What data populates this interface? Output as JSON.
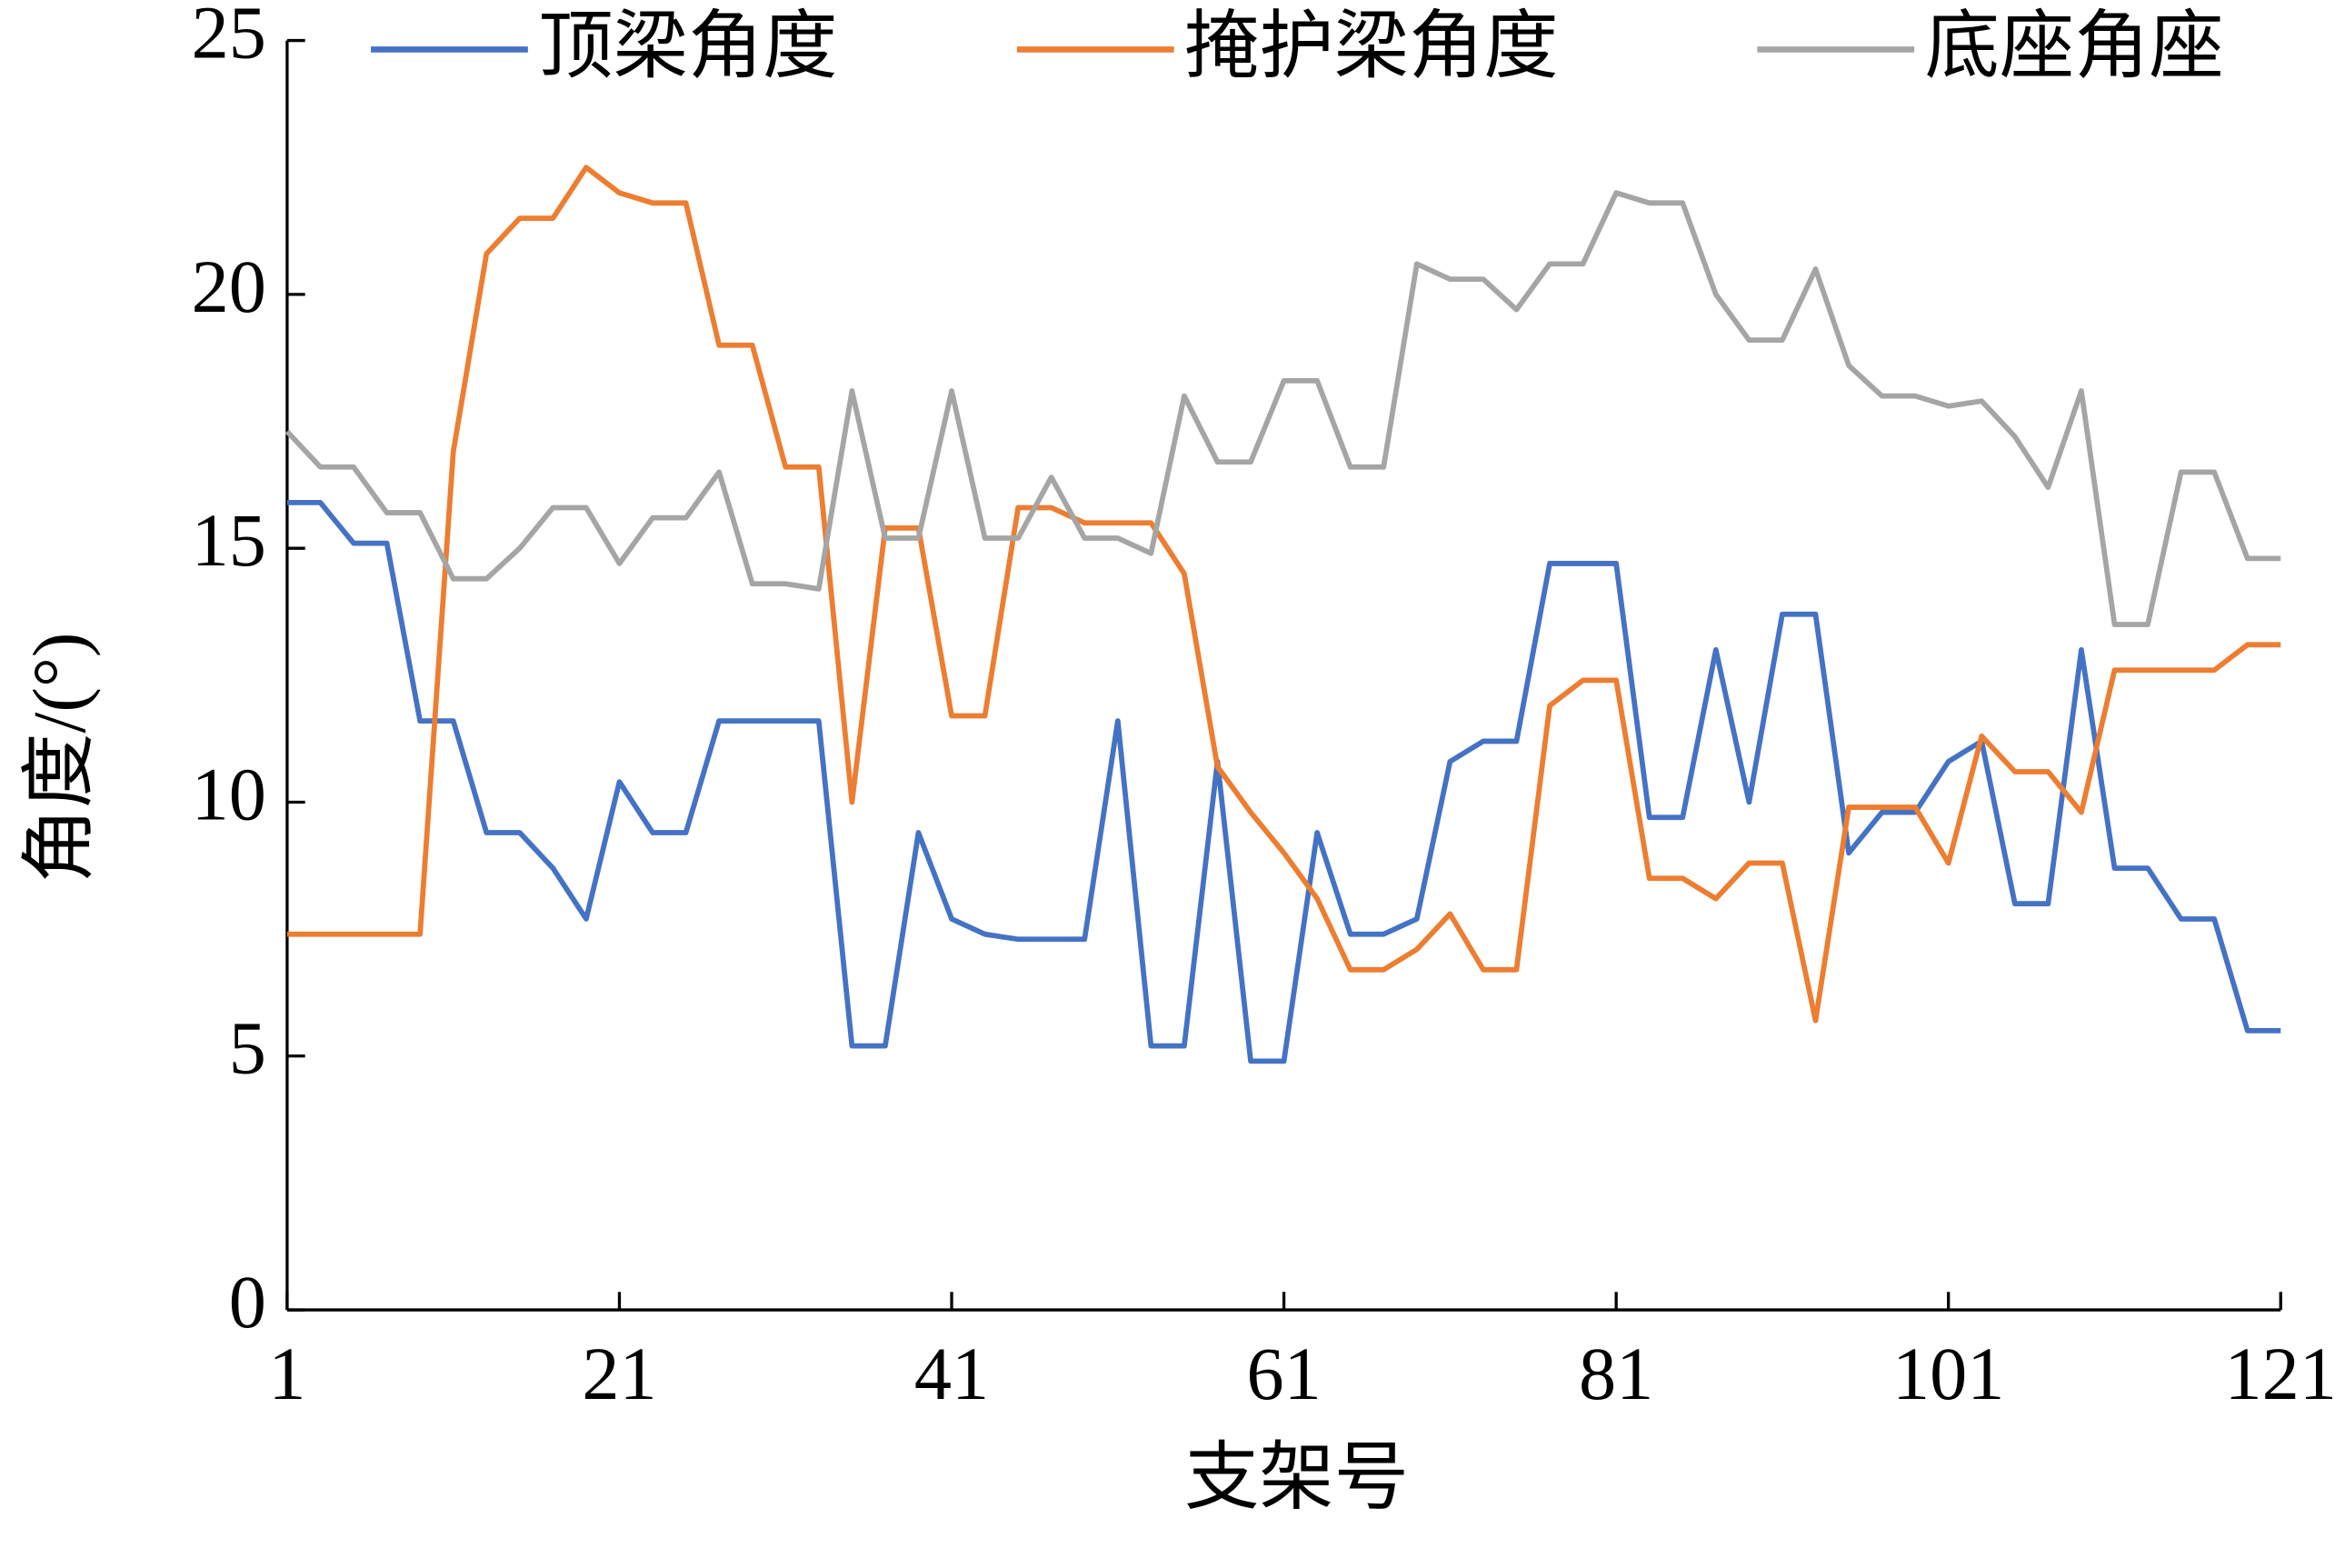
{
  "chart_data": {
    "type": "line",
    "x_label": "支架号",
    "y_label": "角度/(°)",
    "x": [
      1,
      3,
      5,
      7,
      9,
      11,
      13,
      15,
      17,
      19,
      21,
      23,
      25,
      27,
      29,
      31,
      33,
      35,
      37,
      39,
      41,
      43,
      45,
      47,
      49,
      51,
      53,
      55,
      57,
      59,
      61,
      63,
      65,
      67,
      69,
      71,
      73,
      75,
      77,
      79,
      81,
      83,
      85,
      87,
      89,
      91,
      93,
      95,
      97,
      99,
      101,
      103,
      105,
      107,
      109,
      111,
      113,
      115,
      117,
      119,
      121
    ],
    "series": [
      {
        "name": "顶梁角度",
        "color": "#4472c4",
        "values": [
          15.9,
          15.9,
          15.1,
          15.1,
          11.6,
          11.6,
          9.4,
          9.4,
          8.7,
          7.7,
          10.4,
          9.4,
          9.4,
          11.6,
          11.6,
          11.6,
          11.6,
          5.2,
          5.2,
          9.4,
          7.7,
          7.4,
          7.3,
          7.3,
          7.3,
          11.6,
          5.2,
          5.2,
          10.8,
          4.9,
          4.9,
          9.4,
          7.4,
          7.4,
          7.7,
          10.8,
          11.2,
          11.2,
          14.7,
          14.7,
          14.7,
          9.7,
          9.7,
          13.0,
          10.0,
          13.7,
          13.7,
          9.0,
          9.8,
          9.8,
          10.8,
          11.2,
          8.0,
          8.0,
          13.0,
          8.7,
          8.7,
          7.7,
          7.7,
          5.5,
          5.5
        ]
      },
      {
        "name": "掩护梁角度",
        "color": "#ed7d31",
        "values": [
          7.4,
          7.4,
          7.4,
          7.4,
          7.4,
          16.9,
          20.8,
          21.5,
          21.5,
          22.5,
          22.0,
          21.8,
          21.8,
          19.0,
          19.0,
          16.6,
          16.6,
          10.0,
          15.4,
          15.4,
          11.7,
          11.7,
          15.8,
          15.8,
          15.5,
          15.5,
          15.5,
          14.5,
          10.7,
          9.8,
          9.0,
          8.1,
          6.7,
          6.7,
          7.1,
          7.8,
          6.7,
          6.7,
          11.9,
          12.4,
          12.4,
          8.5,
          8.5,
          8.1,
          8.8,
          8.8,
          5.7,
          9.9,
          9.9,
          9.9,
          8.8,
          11.3,
          10.6,
          10.6,
          9.8,
          12.6,
          12.6,
          12.6,
          12.6,
          13.1,
          13.1
        ]
      },
      {
        "name": "底座角座",
        "color": "#a5a5a5",
        "values": [
          17.3,
          16.6,
          16.6,
          15.7,
          15.7,
          14.4,
          14.4,
          15.0,
          15.8,
          15.8,
          14.7,
          15.6,
          15.6,
          16.5,
          14.3,
          14.3,
          14.2,
          18.1,
          15.2,
          15.2,
          18.1,
          15.2,
          15.2,
          16.4,
          15.2,
          15.2,
          14.9,
          18.0,
          16.7,
          16.7,
          18.3,
          18.3,
          16.6,
          16.6,
          20.6,
          20.3,
          20.3,
          19.7,
          20.6,
          20.6,
          22.0,
          21.8,
          21.8,
          20.0,
          19.1,
          19.1,
          20.5,
          18.6,
          18.0,
          18.0,
          17.8,
          17.9,
          17.2,
          16.2,
          18.1,
          13.5,
          13.5,
          16.5,
          16.5,
          14.8,
          14.8
        ]
      }
    ],
    "xlim": [
      1,
      121
    ],
    "xticks": [
      1,
      21,
      41,
      61,
      81,
      101,
      121
    ],
    "ylim": [
      0,
      25
    ],
    "yticks": [
      0,
      5,
      10,
      15,
      20,
      25
    ]
  }
}
